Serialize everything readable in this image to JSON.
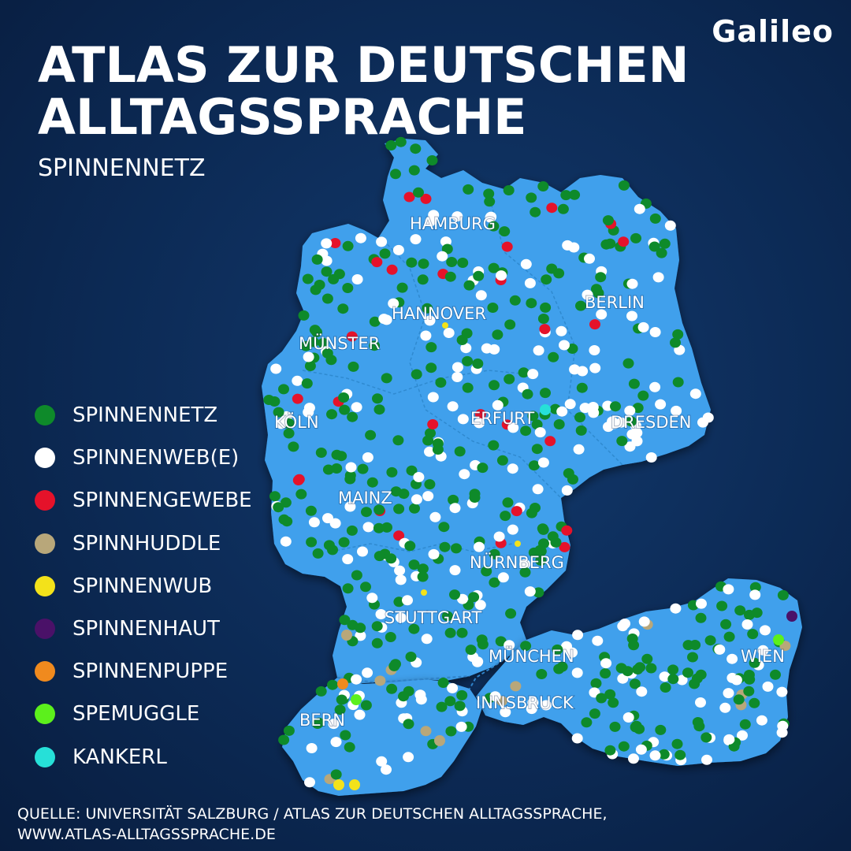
{
  "brand": {
    "logo_text": "Galileo"
  },
  "header": {
    "title_line1": "ATLAS ZUR DEUTSCHEN",
    "title_line2": "ALLTAGSSPRACHE",
    "subtitle": "SPINNENNETZ"
  },
  "colors": {
    "background": "#0c2a55",
    "land": "#3fa0ec",
    "spinnennetz": "#0e8a2a",
    "spinnenwebe": "#ffffff",
    "spinnengewebe": "#e5122a",
    "spinnhuddle": "#b8a77a",
    "spinnenwub": "#f3e21a",
    "spinnenhaut": "#4a1168",
    "spinnenpuppe": "#f08a1e",
    "spemuggle": "#5cf01c",
    "kankerl": "#26e0d8"
  },
  "legend": [
    {
      "key": "spinnennetz",
      "label": "SPINNENNETZ"
    },
    {
      "key": "spinnenwebe",
      "label": "SPINNENWEB(E)"
    },
    {
      "key": "spinnengewebe",
      "label": "SPINNENGEWEBE"
    },
    {
      "key": "spinnhuddle",
      "label": "SPINNHUDDLE"
    },
    {
      "key": "spinnenwub",
      "label": "SPINNENWUB"
    },
    {
      "key": "spinnenhaut",
      "label": "SPINNENHAUT"
    },
    {
      "key": "spinnenpuppe",
      "label": "SPINNENPUPPE"
    },
    {
      "key": "spemuggle",
      "label": "SPEMUGGLE"
    },
    {
      "key": "kankerl",
      "label": "KANKERL"
    }
  ],
  "cities": [
    "HAMBURG",
    "HANNOVER",
    "BERLIN",
    "MÜNSTER",
    "KÖLN",
    "ERFURT",
    "DRESDEN",
    "MAINZ",
    "NÜRNBERG",
    "STUTTGART",
    "MÜNCHEN",
    "WIEN",
    "INNSBRUCK",
    "BERN"
  ],
  "source": {
    "line1": "QUELLE: UNIVERSITÄT SALZBURG / ATLAS ZUR DEUTSCHEN ALLTAGSSPRACHE,",
    "line2": "WWW.ATLAS-ALLTAGSSPRACHE.DE"
  }
}
